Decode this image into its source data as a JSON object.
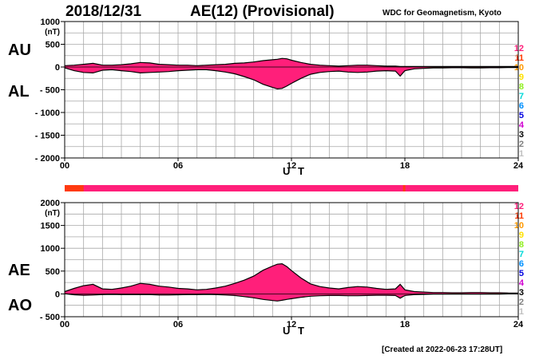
{
  "header": {
    "date": "2018/12/31",
    "title": "AE(12) (Provisional)",
    "credit": "WDC for Geomagnetism, Kyoto"
  },
  "footer": {
    "created": "[Created at 2022-06-23 17:28UT]"
  },
  "colors": {
    "fill": "#ff1f7a",
    "outline": "#000000",
    "grid": "#a8a8a8",
    "strip_early": "#ff3a10",
    "strip_main": "#ff1f7a"
  },
  "legend": [
    {
      "label": "12",
      "color": "#ff1f7a"
    },
    {
      "label": "11",
      "color": "#ff3a00"
    },
    {
      "label": "10",
      "color": "#ff9900"
    },
    {
      "label": "9",
      "color": "#ffe000"
    },
    {
      "label": "8",
      "color": "#90ee20"
    },
    {
      "label": "7",
      "color": "#00d8d8"
    },
    {
      "label": "6",
      "color": "#0090ff"
    },
    {
      "label": "5",
      "color": "#0000e0"
    },
    {
      "label": "4",
      "color": "#d000d0"
    },
    {
      "label": "3",
      "color": "#000000"
    },
    {
      "label": "2",
      "color": "#808080"
    },
    {
      "label": "1",
      "color": "#c0c0c0"
    }
  ],
  "chart_data": [
    {
      "type": "area",
      "panel": "top",
      "labels": {
        "upper": "AU",
        "lower": "AL"
      },
      "ylabel": "(nT)",
      "xlabel": "U T",
      "ylim": [
        -2000,
        1000
      ],
      "xlim": [
        0,
        24
      ],
      "xticks": [
        "00",
        "06",
        "12",
        "18",
        "24"
      ],
      "yticks": [
        "1000",
        "500",
        "0",
        "- 500",
        "- 1000",
        "- 1500",
        "- 2000"
      ],
      "x": [
        0,
        0.5,
        1,
        1.5,
        2,
        2.5,
        3,
        3.5,
        4,
        4.5,
        5,
        5.5,
        6,
        6.5,
        7,
        7.5,
        8,
        8.5,
        9,
        9.5,
        10,
        10.5,
        11,
        11.25,
        11.5,
        11.75,
        12,
        12.5,
        13,
        13.5,
        14,
        14.5,
        15,
        15.5,
        16,
        16.5,
        17,
        17.5,
        17.75,
        18,
        18.5,
        19,
        19.5,
        20,
        20.5,
        21,
        21.5,
        22,
        22.5,
        23,
        23.5,
        24
      ],
      "series": [
        {
          "name": "AU",
          "values": [
            30,
            40,
            60,
            80,
            40,
            40,
            50,
            70,
            100,
            90,
            60,
            50,
            40,
            40,
            30,
            40,
            50,
            60,
            80,
            90,
            110,
            140,
            160,
            170,
            190,
            180,
            150,
            100,
            60,
            40,
            30,
            20,
            30,
            40,
            40,
            30,
            20,
            20,
            10,
            10,
            10,
            10,
            10,
            10,
            10,
            10,
            10,
            10,
            10,
            10,
            10,
            10
          ]
        },
        {
          "name": "AL",
          "values": [
            -20,
            -80,
            -120,
            -130,
            -70,
            -60,
            -80,
            -100,
            -130,
            -120,
            -110,
            -100,
            -80,
            -70,
            -60,
            -60,
            -80,
            -110,
            -150,
            -210,
            -280,
            -380,
            -450,
            -480,
            -470,
            -420,
            -360,
            -250,
            -160,
            -120,
            -100,
            -90,
            -110,
            -120,
            -110,
            -90,
            -80,
            -90,
            -200,
            -80,
            -40,
            -30,
            -20,
            -20,
            -15,
            -15,
            -20,
            -20,
            -15,
            -15,
            -10,
            -10
          ]
        }
      ]
    },
    {
      "type": "area",
      "panel": "bottom",
      "labels": {
        "upper": "AE",
        "lower": "AO"
      },
      "ylabel": "(nT)",
      "xlabel": "U T",
      "ylim": [
        -500,
        2000
      ],
      "xlim": [
        0,
        24
      ],
      "xticks": [
        "00",
        "06",
        "12",
        "18",
        "24"
      ],
      "yticks": [
        "2000",
        "1500",
        "1000",
        "500",
        "0",
        "- 500"
      ],
      "x": [
        0,
        0.5,
        1,
        1.5,
        2,
        2.5,
        3,
        3.5,
        4,
        4.5,
        5,
        5.5,
        6,
        6.5,
        7,
        7.5,
        8,
        8.5,
        9,
        9.5,
        10,
        10.5,
        11,
        11.25,
        11.5,
        11.75,
        12,
        12.5,
        13,
        13.5,
        14,
        14.5,
        15,
        15.5,
        16,
        16.5,
        17,
        17.5,
        17.75,
        18,
        18.5,
        19,
        19.5,
        20,
        20.5,
        21,
        21.5,
        22,
        22.5,
        23,
        23.5,
        24
      ],
      "series": [
        {
          "name": "AE",
          "values": [
            50,
            120,
            180,
            210,
            110,
            100,
            130,
            170,
            230,
            210,
            170,
            150,
            120,
            110,
            90,
            100,
            130,
            170,
            230,
            300,
            390,
            520,
            610,
            650,
            660,
            600,
            510,
            350,
            220,
            160,
            130,
            110,
            140,
            160,
            150,
            120,
            100,
            110,
            210,
            90,
            50,
            40,
            30,
            30,
            25,
            25,
            30,
            30,
            25,
            25,
            20,
            20
          ]
        },
        {
          "name": "AO",
          "values": [
            5,
            -20,
            -30,
            -25,
            -15,
            -10,
            -15,
            -15,
            -15,
            -15,
            -25,
            -25,
            -20,
            -15,
            -15,
            -10,
            -15,
            -25,
            -35,
            -60,
            -85,
            -120,
            -145,
            -155,
            -140,
            -120,
            -105,
            -75,
            -50,
            -40,
            -35,
            -35,
            -40,
            -40,
            -35,
            -30,
            -30,
            -35,
            -95,
            -35,
            -15,
            -10,
            -5,
            -5,
            -3,
            -3,
            -5,
            -5,
            -3,
            -3,
            0,
            0
          ]
        }
      ]
    }
  ],
  "strip": {
    "early_until_hour": 1.0,
    "late_dash_hour": 17.9
  }
}
